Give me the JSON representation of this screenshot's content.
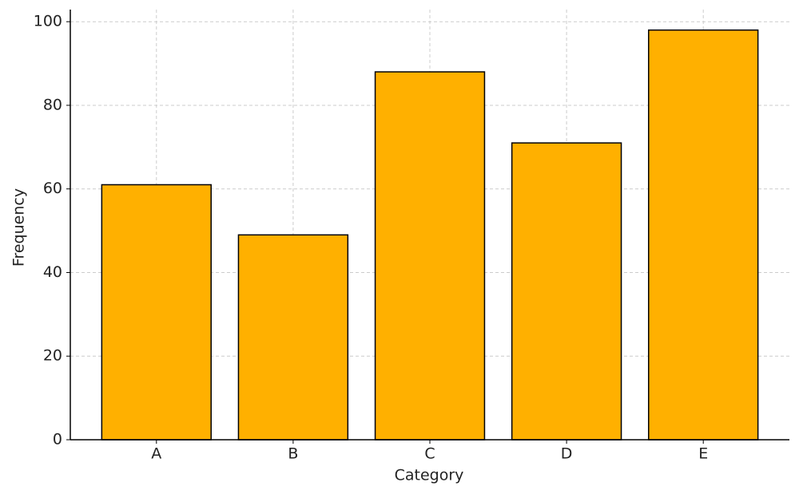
{
  "chart_data": {
    "type": "bar",
    "x_label": "Category",
    "y_label": "Frequency",
    "categories": [
      "A",
      "B",
      "C",
      "D",
      "E"
    ],
    "values": [
      61,
      49,
      88,
      71,
      98
    ],
    "color": "#ffb000",
    "edge_color": "#000000",
    "ylim": [
      0,
      102.9
    ],
    "yticks": [
      0,
      20,
      40,
      60,
      80,
      100
    ],
    "grid": true
  }
}
